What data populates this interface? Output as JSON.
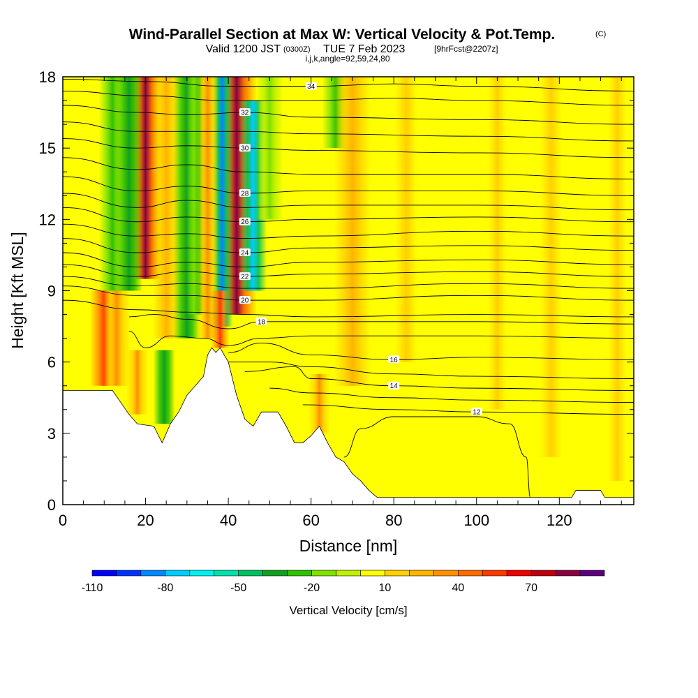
{
  "title": {
    "main": "Wind-Parallel Section at Max W: Vertical Velocity & Pot.Temp.",
    "copyright": "(C)",
    "valid_prefix": "Valid 1200 JST",
    "utc": "(0300Z)",
    "date": "TUE 7 Feb 2023",
    "forecast": "[9hrFcst@2207z]",
    "indices": "i,j,k,angle=92,59,24,80"
  },
  "colors": {
    "background_fill": "#ffff00",
    "terrain": "#ffffff",
    "contour": "#000000",
    "palette": [
      "#0000ff",
      "#0033ff",
      "#0088ff",
      "#00ccff",
      "#00f0ee",
      "#00e0a8",
      "#00c060",
      "#10a020",
      "#30c000",
      "#80e000",
      "#c0f000",
      "#ffff00",
      "#ffd000",
      "#ffb400",
      "#ff9000",
      "#ff6a00",
      "#ff3a00",
      "#ee0000",
      "#bb0010",
      "#880040",
      "#5a007a"
    ]
  },
  "chart_data": {
    "type": "heatmap",
    "description_fields": "filled vertical velocity with potential temperature contours",
    "xlabel": "Distance [nm]",
    "ylabel": "Height [Kft MSL]",
    "xlim": [
      0,
      138
    ],
    "ylim": [
      0,
      18
    ],
    "x_ticks": [
      0,
      20,
      40,
      60,
      80,
      100,
      120
    ],
    "y_ticks": [
      0,
      3,
      6,
      9,
      12,
      15,
      18
    ],
    "grid": false,
    "colorbar": {
      "title": "Vertical Velocity [cm/s]",
      "tick_labels": [
        "-110",
        "-80",
        "-50",
        "-20",
        "10",
        "40",
        "70"
      ],
      "tick_values": [
        -110,
        -80,
        -50,
        -20,
        10,
        40,
        70
      ],
      "min": -110,
      "max": 100,
      "bins": 21,
      "position": "bottom"
    },
    "terrain_profile": [
      [
        0,
        4.8
      ],
      [
        12,
        4.8
      ],
      [
        14,
        4.3
      ],
      [
        16,
        3.8
      ],
      [
        18,
        3.4
      ],
      [
        22,
        3.3
      ],
      [
        24,
        2.6
      ],
      [
        26,
        3.4
      ],
      [
        28,
        3.9
      ],
      [
        30,
        4.6
      ],
      [
        34,
        5.4
      ],
      [
        35,
        6.3
      ],
      [
        36,
        6.6
      ],
      [
        37,
        6.4
      ],
      [
        38,
        6.6
      ],
      [
        40,
        6.0
      ],
      [
        42,
        4.6
      ],
      [
        44,
        3.6
      ],
      [
        46,
        3.3
      ],
      [
        48,
        3.9
      ],
      [
        52,
        3.9
      ],
      [
        54,
        3.3
      ],
      [
        56,
        2.6
      ],
      [
        58,
        2.6
      ],
      [
        60,
        2.9
      ],
      [
        62,
        3.3
      ],
      [
        64,
        2.6
      ],
      [
        66,
        2.0
      ],
      [
        68,
        1.8
      ],
      [
        70,
        1.3
      ],
      [
        72,
        1.0
      ],
      [
        74,
        0.6
      ],
      [
        76,
        0.3
      ],
      [
        100,
        0.3
      ],
      [
        110,
        0.3
      ],
      [
        123,
        0.3
      ],
      [
        124,
        0.6
      ],
      [
        130,
        0.6
      ],
      [
        131,
        0.3
      ],
      [
        138,
        0.3
      ]
    ],
    "velocity_features": [
      {
        "x": 20,
        "y_from": 9.5,
        "y_to": 18,
        "value": 80,
        "half_width": 1.8
      },
      {
        "x": 42,
        "y_from": 8,
        "y_to": 18,
        "value": 80,
        "half_width": 2.2
      },
      {
        "x": 38.5,
        "y_from": 7.5,
        "y_to": 18,
        "value": -90,
        "half_width": 1.2
      },
      {
        "x": 46,
        "y_from": 9,
        "y_to": 17,
        "value": -80,
        "half_width": 1.5
      },
      {
        "x": 12,
        "y_from": 9,
        "y_to": 18,
        "value": -30,
        "half_width": 1.5
      },
      {
        "x": 16,
        "y_from": 9,
        "y_to": 18,
        "value": -40,
        "half_width": 1.5
      },
      {
        "x": 25,
        "y_from": 7,
        "y_to": 18,
        "value": 20,
        "half_width": 1.5
      },
      {
        "x": 30,
        "y_from": 7,
        "y_to": 18,
        "value": -40,
        "half_width": 1.5
      },
      {
        "x": 33,
        "y_from": 8,
        "y_to": 18,
        "value": -30,
        "half_width": 1.5
      },
      {
        "x": 35,
        "y_from": 7,
        "y_to": 18,
        "value": 30,
        "half_width": 1.2
      },
      {
        "x": 10,
        "y_from": 5,
        "y_to": 9,
        "value": 55,
        "half_width": 1.6
      },
      {
        "x": 13,
        "y_from": 5,
        "y_to": 9,
        "value": 30,
        "half_width": 1.5
      },
      {
        "x": 24.5,
        "y_from": 3.4,
        "y_to": 6.5,
        "value": -40,
        "half_width": 1.2
      },
      {
        "x": 18,
        "y_from": 3.8,
        "y_to": 6.5,
        "value": 30,
        "half_width": 1.2
      },
      {
        "x": 38,
        "y_from": 6.6,
        "y_to": 9,
        "value": 55,
        "half_width": 1.0
      },
      {
        "x": 50,
        "y_from": 12,
        "y_to": 18,
        "value": -15,
        "half_width": 1.5
      },
      {
        "x": 62,
        "y_from": 3,
        "y_to": 5.5,
        "value": 30,
        "half_width": 1.2
      },
      {
        "x": 66,
        "y_from": 15,
        "y_to": 18,
        "value": -30,
        "half_width": 1.5
      },
      {
        "x": 70,
        "y_from": 5,
        "y_to": 18,
        "value": 20,
        "half_width": 2.0
      },
      {
        "x": 83,
        "y_from": 6,
        "y_to": 18,
        "value": 15,
        "half_width": 3.0
      },
      {
        "x": 105,
        "y_from": 4,
        "y_to": 18,
        "value": 15,
        "half_width": 2.5
      },
      {
        "x": 118,
        "y_from": 2,
        "y_to": 18,
        "value": 15,
        "half_width": 3.0
      },
      {
        "x": 134,
        "y_from": 1,
        "y_to": 18,
        "value": 15,
        "half_width": 2.5
      }
    ],
    "theta_contours": [
      {
        "level": 34,
        "label": "34",
        "points": [
          [
            0,
            17.9
          ],
          [
            20,
            17.8
          ],
          [
            40,
            17.6
          ],
          [
            60,
            17.6
          ],
          [
            80,
            17.7
          ],
          [
            100,
            17.6
          ],
          [
            138,
            17.4
          ]
        ]
      },
      {
        "level": 33,
        "label": "",
        "points": [
          [
            0,
            17.4
          ],
          [
            20,
            17.2
          ],
          [
            40,
            17.0
          ],
          [
            60,
            17.0
          ],
          [
            80,
            17.1
          ],
          [
            100,
            17.0
          ],
          [
            138,
            16.8
          ]
        ]
      },
      {
        "level": 32,
        "label": "32",
        "points": [
          [
            0,
            16.8
          ],
          [
            18,
            16.5
          ],
          [
            30,
            16.4
          ],
          [
            44,
            16.5
          ],
          [
            60,
            16.3
          ],
          [
            100,
            16.2
          ],
          [
            138,
            16.0
          ]
        ]
      },
      {
        "level": 31,
        "label": "",
        "points": [
          [
            0,
            16.1
          ],
          [
            18,
            15.7
          ],
          [
            30,
            15.7
          ],
          [
            44,
            15.7
          ],
          [
            60,
            15.6
          ],
          [
            100,
            15.5
          ],
          [
            138,
            15.3
          ]
        ]
      },
      {
        "level": 30,
        "label": "30",
        "points": [
          [
            0,
            15.4
          ],
          [
            18,
            15.0
          ],
          [
            30,
            15.1
          ],
          [
            44,
            15.0
          ],
          [
            60,
            14.9
          ],
          [
            100,
            14.8
          ],
          [
            138,
            14.6
          ]
        ]
      },
      {
        "level": 29,
        "label": "",
        "points": [
          [
            0,
            14.6
          ],
          [
            18,
            14.1
          ],
          [
            30,
            14.3
          ],
          [
            44,
            14.0
          ],
          [
            60,
            13.9
          ],
          [
            100,
            13.9
          ],
          [
            138,
            13.7
          ]
        ]
      },
      {
        "level": 28,
        "label": "28",
        "points": [
          [
            0,
            13.8
          ],
          [
            18,
            13.2
          ],
          [
            30,
            13.4
          ],
          [
            44,
            13.1
          ],
          [
            60,
            13.2
          ],
          [
            100,
            13.2
          ],
          [
            138,
            13.0
          ]
        ]
      },
      {
        "level": 27,
        "label": "",
        "points": [
          [
            0,
            13.1
          ],
          [
            18,
            12.5
          ],
          [
            30,
            12.8
          ],
          [
            44,
            12.5
          ],
          [
            60,
            12.6
          ],
          [
            100,
            12.6
          ],
          [
            138,
            12.4
          ]
        ]
      },
      {
        "level": 26,
        "label": "26",
        "points": [
          [
            0,
            12.5
          ],
          [
            18,
            11.9
          ],
          [
            30,
            12.1
          ],
          [
            44,
            11.9
          ],
          [
            60,
            12.0
          ],
          [
            100,
            12.1
          ],
          [
            138,
            11.9
          ]
        ]
      },
      {
        "level": 25,
        "label": "",
        "points": [
          [
            0,
            11.8
          ],
          [
            18,
            11.3
          ],
          [
            30,
            11.4
          ],
          [
            44,
            11.2
          ],
          [
            60,
            11.3
          ],
          [
            100,
            11.5
          ],
          [
            138,
            11.3
          ]
        ]
      },
      {
        "level": 24,
        "label": "24",
        "points": [
          [
            0,
            11.2
          ],
          [
            18,
            10.6
          ],
          [
            30,
            10.8
          ],
          [
            44,
            10.6
          ],
          [
            60,
            10.8
          ],
          [
            100,
            10.9
          ],
          [
            138,
            10.7
          ]
        ]
      },
      {
        "level": 23,
        "label": "",
        "points": [
          [
            0,
            10.6
          ],
          [
            18,
            10.0
          ],
          [
            30,
            10.2
          ],
          [
            44,
            10.0
          ],
          [
            60,
            10.2
          ],
          [
            100,
            10.3
          ],
          [
            138,
            10.1
          ]
        ]
      },
      {
        "level": 22,
        "label": "22",
        "points": [
          [
            0,
            10.1
          ],
          [
            18,
            9.6
          ],
          [
            30,
            9.8
          ],
          [
            44,
            9.6
          ],
          [
            60,
            9.7
          ],
          [
            100,
            9.8
          ],
          [
            138,
            9.6
          ]
        ]
      },
      {
        "level": 21,
        "label": "",
        "points": [
          [
            0,
            9.6
          ],
          [
            18,
            9.2
          ],
          [
            30,
            9.3
          ],
          [
            44,
            9.1
          ],
          [
            60,
            9.1
          ],
          [
            100,
            9.3
          ],
          [
            138,
            9.1
          ]
        ]
      },
      {
        "level": 20,
        "label": "20",
        "points": [
          [
            0,
            9.2
          ],
          [
            18,
            8.8
          ],
          [
            30,
            8.8
          ],
          [
            44,
            8.6
          ],
          [
            60,
            8.6
          ],
          [
            100,
            8.8
          ],
          [
            138,
            8.6
          ]
        ]
      },
      {
        "level": 19,
        "label": "",
        "points": [
          [
            0,
            8.6
          ],
          [
            18,
            8.2
          ],
          [
            30,
            8.1
          ],
          [
            44,
            8.0
          ],
          [
            60,
            7.9
          ],
          [
            100,
            8.0
          ],
          [
            138,
            7.9
          ]
        ]
      },
      {
        "level": 18,
        "label": "18",
        "points": [
          [
            16,
            7.9
          ],
          [
            22,
            8.0
          ],
          [
            30,
            7.8
          ],
          [
            40,
            7.4
          ],
          [
            48,
            7.7
          ],
          [
            60,
            7.7
          ],
          [
            100,
            7.7
          ],
          [
            138,
            7.6
          ]
        ]
      },
      {
        "level": 17,
        "label": "",
        "points": [
          [
            16,
            7.3
          ],
          [
            20,
            6.6
          ],
          [
            26,
            7.1
          ],
          [
            34,
            7.0
          ],
          [
            40,
            6.7
          ],
          [
            48,
            7.0
          ],
          [
            60,
            7.1
          ],
          [
            100,
            7.1
          ],
          [
            138,
            7.0
          ]
        ]
      },
      {
        "level": 16,
        "label": "16",
        "points": [
          [
            40,
            6.4
          ],
          [
            48,
            6.8
          ],
          [
            60,
            6.3
          ],
          [
            80,
            6.1
          ],
          [
            100,
            6.2
          ],
          [
            138,
            6.1
          ]
        ]
      },
      {
        "level": 15,
        "label": "",
        "points": [
          [
            40,
            6.0
          ],
          [
            50,
            6.0
          ],
          [
            60,
            5.8
          ],
          [
            80,
            5.5
          ],
          [
            100,
            5.4
          ],
          [
            138,
            5.3
          ]
        ]
      },
      {
        "level": 14,
        "label": "14",
        "points": [
          [
            44,
            5.6
          ],
          [
            56,
            5.8
          ],
          [
            60,
            5.3
          ],
          [
            80,
            5.0
          ],
          [
            100,
            4.9
          ],
          [
            138,
            4.8
          ]
        ]
      },
      {
        "level": 13,
        "label": "",
        "points": [
          [
            50,
            4.9
          ],
          [
            60,
            4.7
          ],
          [
            80,
            4.5
          ],
          [
            100,
            4.4
          ],
          [
            138,
            4.3
          ]
        ]
      },
      {
        "level": 12,
        "label": "12",
        "points": [
          [
            58,
            4.2
          ],
          [
            80,
            4.0
          ],
          [
            100,
            3.9
          ],
          [
            138,
            3.8
          ]
        ]
      }
    ],
    "low_level_dome": [
      [
        68,
        2.0
      ],
      [
        72,
        3.2
      ],
      [
        80,
        3.7
      ],
      [
        100,
        3.7
      ],
      [
        108,
        3.4
      ],
      [
        112,
        2.0
      ],
      [
        113,
        0.3
      ]
    ]
  }
}
